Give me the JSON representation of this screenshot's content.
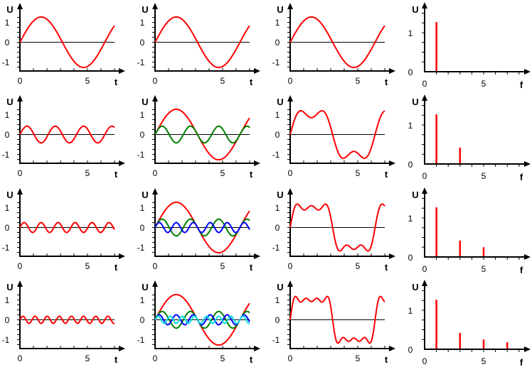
{
  "chart_data": {
    "type": "line",
    "layout": "4 rows x 4 columns",
    "columns": [
      "single harmonic of each row",
      "all harmonics up to this row",
      "sum of harmonics",
      "amplitude spectrum (bar)"
    ],
    "harmonics": [
      {
        "frequency": 1,
        "amplitude": 1.27,
        "color": "#ff0000"
      },
      {
        "frequency": 3,
        "amplitude": 0.42,
        "color": "#008000"
      },
      {
        "frequency": 5,
        "amplitude": 0.25,
        "color": "#0000ff"
      },
      {
        "frequency": 7,
        "amplitude": 0.18,
        "color": "#00e0e0"
      }
    ],
    "single_harmonic_color": "#ff0000",
    "sum_color": "#ff0000",
    "spectrum_color": "#ff0000",
    "time_plots": {
      "xlabel": "t",
      "ylabel": "U",
      "xlim": [
        0,
        7
      ],
      "ylim": [
        -1.45,
        1.45
      ],
      "xticks": [
        "0",
        "5"
      ],
      "yticks": [
        "1",
        "0",
        "-1"
      ]
    },
    "spectrum_plots": {
      "xlabel": "f",
      "ylabel": "U",
      "xlim": [
        0,
        8
      ],
      "ylim": [
        0,
        1.75
      ],
      "xticks": [
        "0",
        "5"
      ],
      "yticks": [
        "1",
        "0"
      ]
    }
  }
}
